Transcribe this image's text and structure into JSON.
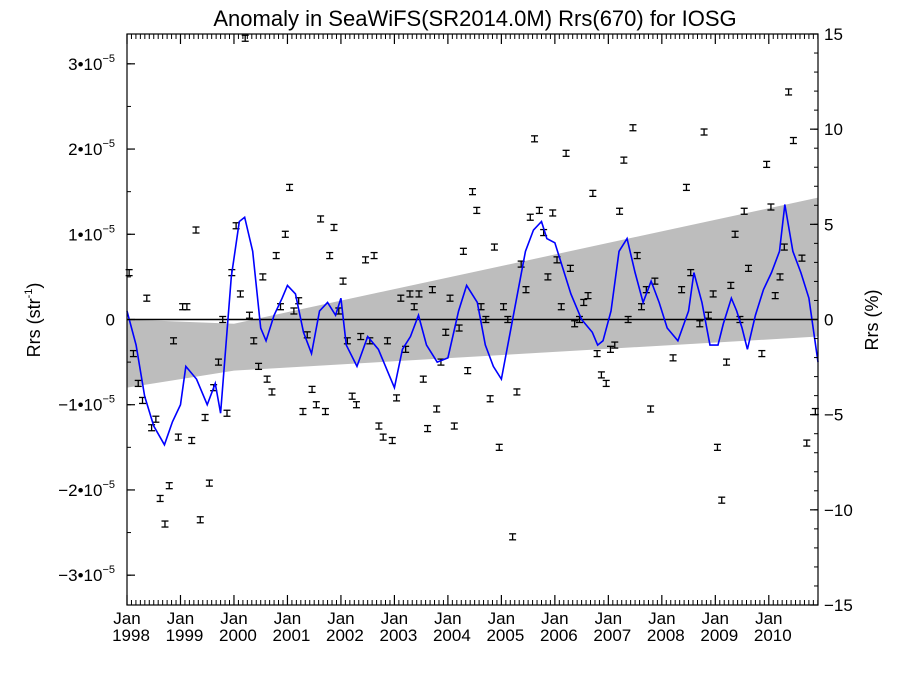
{
  "chart_data": {
    "type": "scatter",
    "title": "Anomaly in SeaWiFS(SR2014.0M) Rrs(670) for IOSG",
    "ylabel_left": "Rrs (str",
    "ylabel_left_sup": "-1",
    "ylabel_left_close": ")",
    "ylabel_right": "Rrs (%)",
    "y_left": {
      "lim": [
        -3.35e-05,
        3.35e-05
      ],
      "ticks": [
        {
          "value": 3e-05,
          "label": "3•10",
          "exp": "−5"
        },
        {
          "value": 2e-05,
          "label": "2•10",
          "exp": "−5"
        },
        {
          "value": 1e-05,
          "label": "1•10",
          "exp": "−5"
        },
        {
          "value": 0,
          "label": "0",
          "exp": ""
        },
        {
          "value": -1e-05,
          "label": "−1•10",
          "exp": "−5"
        },
        {
          "value": -2e-05,
          "label": "−2•10",
          "exp": "−5"
        },
        {
          "value": -3e-05,
          "label": "−3•10",
          "exp": "−5"
        }
      ]
    },
    "y_right": {
      "lim": [
        -15,
        15
      ],
      "ticks": [
        {
          "value": 15,
          "label": "15"
        },
        {
          "value": 10,
          "label": "10"
        },
        {
          "value": 5,
          "label": "5"
        },
        {
          "value": 0,
          "label": "0"
        },
        {
          "value": -5,
          "label": "−5"
        },
        {
          "value": -10,
          "label": "−10"
        },
        {
          "value": -15,
          "label": "−15"
        }
      ]
    },
    "x": {
      "lim": [
        1998.0,
        2010.92
      ],
      "ticks": [
        {
          "value": 1998,
          "month": "Jan",
          "year": "1998"
        },
        {
          "value": 1999,
          "month": "Jan",
          "year": "1999"
        },
        {
          "value": 2000,
          "month": "Jan",
          "year": "2000"
        },
        {
          "value": 2001,
          "month": "Jan",
          "year": "2001"
        },
        {
          "value": 2002,
          "month": "Jan",
          "year": "2002"
        },
        {
          "value": 2003,
          "month": "Jan",
          "year": "2003"
        },
        {
          "value": 2004,
          "month": "Jan",
          "year": "2004"
        },
        {
          "value": 2005,
          "month": "Jan",
          "year": "2005"
        },
        {
          "value": 2006,
          "month": "Jan",
          "year": "2006"
        },
        {
          "value": 2007,
          "month": "Jan",
          "year": "2007"
        },
        {
          "value": 2008,
          "month": "Jan",
          "year": "2008"
        },
        {
          "value": 2009,
          "month": "Jan",
          "year": "2009"
        },
        {
          "value": 2010,
          "month": "Jan",
          "year": "2010"
        }
      ]
    },
    "confidence_band": {
      "upper": [
        [
          1998.0,
          0.0
        ],
        [
          2000.0,
          -5e-07
        ],
        [
          2010.92,
          1.43e-05
        ]
      ],
      "lower": [
        [
          1998.0,
          -8e-06
        ],
        [
          2000.0,
          -6e-06
        ],
        [
          2010.92,
          -2e-06
        ]
      ]
    },
    "smoothed_line": [
      [
        1998.0,
        1e-06
      ],
      [
        1998.17,
        -3e-06
      ],
      [
        1998.33,
        -9e-06
      ],
      [
        1998.5,
        -1.25e-05
      ],
      [
        1998.7,
        -1.47e-05
      ],
      [
        1998.85,
        -1.2e-05
      ],
      [
        1999.0,
        -1e-05
      ],
      [
        1999.1,
        -5.5e-06
      ],
      [
        1999.3,
        -7e-06
      ],
      [
        1999.5,
        -1e-05
      ],
      [
        1999.65,
        -7.5e-06
      ],
      [
        1999.75,
        -1.1e-05
      ],
      [
        1999.85,
        -3e-06
      ],
      [
        1999.95,
        5e-06
      ],
      [
        2000.1,
        1.15e-05
      ],
      [
        2000.2,
        1.2e-05
      ],
      [
        2000.35,
        8e-06
      ],
      [
        2000.5,
        -1e-06
      ],
      [
        2000.6,
        -2.5e-06
      ],
      [
        2000.75,
        5e-07
      ],
      [
        2000.9,
        2.5e-06
      ],
      [
        2001.0,
        4e-06
      ],
      [
        2001.15,
        3e-06
      ],
      [
        2001.3,
        -1.5e-06
      ],
      [
        2001.45,
        -4e-06
      ],
      [
        2001.6,
        1e-06
      ],
      [
        2001.75,
        2e-06
      ],
      [
        2001.9,
        5e-07
      ],
      [
        2002.0,
        2.5e-06
      ],
      [
        2002.1,
        -3e-06
      ],
      [
        2002.3,
        -5.5e-06
      ],
      [
        2002.5,
        -2e-06
      ],
      [
        2002.7,
        -3.5e-06
      ],
      [
        2002.9,
        -6.5e-06
      ],
      [
        2003.0,
        -8e-06
      ],
      [
        2003.15,
        -3.5e-06
      ],
      [
        2003.3,
        -2e-06
      ],
      [
        2003.45,
        5e-07
      ],
      [
        2003.6,
        -3e-06
      ],
      [
        2003.8,
        -5e-06
      ],
      [
        2004.0,
        -4.5e-06
      ],
      [
        2004.2,
        1e-06
      ],
      [
        2004.35,
        4e-06
      ],
      [
        2004.55,
        2e-06
      ],
      [
        2004.7,
        -3e-06
      ],
      [
        2004.85,
        -5.5e-06
      ],
      [
        2005.0,
        -7e-06
      ],
      [
        2005.15,
        -2e-06
      ],
      [
        2005.3,
        3e-06
      ],
      [
        2005.45,
        8e-06
      ],
      [
        2005.6,
        1.05e-05
      ],
      [
        2005.75,
        1.15e-05
      ],
      [
        2005.85,
        9.5e-06
      ],
      [
        2006.0,
        9e-06
      ],
      [
        2006.15,
        6e-06
      ],
      [
        2006.3,
        3e-06
      ],
      [
        2006.5,
        0.0
      ],
      [
        2006.7,
        -1.5e-06
      ],
      [
        2006.8,
        -3e-06
      ],
      [
        2006.9,
        -2.5e-06
      ],
      [
        2007.05,
        1e-06
      ],
      [
        2007.2,
        8e-06
      ],
      [
        2007.35,
        9.5e-06
      ],
      [
        2007.5,
        5.5e-06
      ],
      [
        2007.65,
        2e-06
      ],
      [
        2007.8,
        4.5e-06
      ],
      [
        2007.95,
        2e-06
      ],
      [
        2008.1,
        -1e-06
      ],
      [
        2008.3,
        -2.5e-06
      ],
      [
        2008.5,
        1e-06
      ],
      [
        2008.6,
        5.5e-06
      ],
      [
        2008.75,
        2e-06
      ],
      [
        2008.9,
        -3e-06
      ],
      [
        2009.05,
        -3e-06
      ],
      [
        2009.15,
        -5e-07
      ],
      [
        2009.3,
        2.5e-06
      ],
      [
        2009.4,
        1e-06
      ],
      [
        2009.5,
        -1e-06
      ],
      [
        2009.6,
        -3.5e-06
      ],
      [
        2009.75,
        5e-07
      ],
      [
        2009.9,
        3.5e-06
      ],
      [
        2010.05,
        5.5e-06
      ],
      [
        2010.2,
        8e-06
      ],
      [
        2010.3,
        1.35e-05
      ],
      [
        2010.45,
        8e-06
      ],
      [
        2010.6,
        5.5e-06
      ],
      [
        2010.75,
        2.5e-06
      ],
      [
        2010.92,
        -5e-06
      ]
    ],
    "points": [
      [
        1998.04,
        5.5e-06
      ],
      [
        1998.12,
        -4e-06
      ],
      [
        1998.21,
        -7.5e-06
      ],
      [
        1998.29,
        -9.5e-06
      ],
      [
        1998.37,
        2.5e-06
      ],
      [
        1998.46,
        -1.27e-05
      ],
      [
        1998.54,
        -1.17e-05
      ],
      [
        1998.62,
        -2.1e-05
      ],
      [
        1998.71,
        -2.4e-05
      ],
      [
        1998.79,
        -1.95e-05
      ],
      [
        1998.87,
        -2.5e-06
      ],
      [
        1998.96,
        -1.38e-05
      ],
      [
        1999.04,
        1.5e-06
      ],
      [
        1999.12,
        1.5e-06
      ],
      [
        1999.21,
        -1.42e-05
      ],
      [
        1999.29,
        1.05e-05
      ],
      [
        1999.37,
        -2.35e-05
      ],
      [
        1999.46,
        -1.15e-05
      ],
      [
        1999.54,
        -1.92e-05
      ],
      [
        1999.62,
        -8e-06
      ],
      [
        1999.71,
        -5e-06
      ],
      [
        1999.79,
        0.0
      ],
      [
        1999.87,
        -1.1e-05
      ],
      [
        1999.96,
        5.5e-06
      ],
      [
        2000.04,
        1.1e-05
      ],
      [
        2000.12,
        3e-06
      ],
      [
        2000.21,
        3.3e-05
      ],
      [
        2000.29,
        5e-07
      ],
      [
        2000.37,
        -2.5e-06
      ],
      [
        2000.46,
        -5.5e-06
      ],
      [
        2000.54,
        5e-06
      ],
      [
        2000.62,
        -7e-06
      ],
      [
        2000.71,
        -8.5e-06
      ],
      [
        2000.79,
        7.5e-06
      ],
      [
        2000.87,
        1.5e-06
      ],
      [
        2000.96,
        1e-05
      ],
      [
        2001.04,
        1.55e-05
      ],
      [
        2001.12,
        1e-06
      ],
      [
        2001.21,
        2.2e-06
      ],
      [
        2001.29,
        -1.08e-05
      ],
      [
        2001.37,
        -1.8e-06
      ],
      [
        2001.46,
        -8.2e-06
      ],
      [
        2001.54,
        -1e-05
      ],
      [
        2001.62,
        1.18e-05
      ],
      [
        2001.71,
        -1.08e-05
      ],
      [
        2001.79,
        7.5e-06
      ],
      [
        2001.87,
        1.08e-05
      ],
      [
        2001.96,
        1e-06
      ],
      [
        2002.04,
        4.5e-06
      ],
      [
        2002.12,
        -2.5e-06
      ],
      [
        2002.21,
        -9e-06
      ],
      [
        2002.29,
        -1e-05
      ],
      [
        2002.37,
        -2e-06
      ],
      [
        2002.46,
        7e-06
      ],
      [
        2002.54,
        -2.5e-06
      ],
      [
        2002.62,
        7.5e-06
      ],
      [
        2002.71,
        -1.25e-05
      ],
      [
        2002.79,
        -1.38e-05
      ],
      [
        2002.87,
        -2.5e-06
      ],
      [
        2002.96,
        -1.42e-05
      ],
      [
        2003.04,
        -9.2e-06
      ],
      [
        2003.12,
        2.5e-06
      ],
      [
        2003.21,
        -3.5e-06
      ],
      [
        2003.29,
        3e-06
      ],
      [
        2003.37,
        1.5e-06
      ],
      [
        2003.46,
        3e-06
      ],
      [
        2003.54,
        -7e-06
      ],
      [
        2003.62,
        -1.28e-05
      ],
      [
        2003.71,
        3.5e-06
      ],
      [
        2003.79,
        -1.05e-05
      ],
      [
        2003.87,
        -5e-06
      ],
      [
        2003.96,
        -1.5e-06
      ],
      [
        2004.04,
        2.5e-06
      ],
      [
        2004.12,
        -1.25e-05
      ],
      [
        2004.21,
        -1e-06
      ],
      [
        2004.29,
        8e-06
      ],
      [
        2004.37,
        -6e-06
      ],
      [
        2004.46,
        1.5e-05
      ],
      [
        2004.54,
        1.28e-05
      ],
      [
        2004.62,
        1.5e-06
      ],
      [
        2004.71,
        0.0
      ],
      [
        2004.79,
        -9.3e-06
      ],
      [
        2004.87,
        8.5e-06
      ],
      [
        2004.96,
        -1.5e-05
      ],
      [
        2005.04,
        1.5e-06
      ],
      [
        2005.12,
        0.0
      ],
      [
        2005.21,
        -2.55e-05
      ],
      [
        2005.29,
        -8.5e-06
      ],
      [
        2005.37,
        6.5e-06
      ],
      [
        2005.46,
        3.5e-06
      ],
      [
        2005.54,
        1.2e-05
      ],
      [
        2005.62,
        2.12e-05
      ],
      [
        2005.71,
        1.28e-05
      ],
      [
        2005.79,
        1.02e-05
      ],
      [
        2005.87,
        5e-06
      ],
      [
        2005.96,
        1.25e-05
      ],
      [
        2006.04,
        7e-06
      ],
      [
        2006.12,
        1.5e-06
      ],
      [
        2006.21,
        1.95e-05
      ],
      [
        2006.29,
        6e-06
      ],
      [
        2006.37,
        -5e-07
      ],
      [
        2006.46,
        0.0
      ],
      [
        2006.54,
        2e-06
      ],
      [
        2006.62,
        2.8e-06
      ],
      [
        2006.71,
        1.48e-05
      ],
      [
        2006.79,
        -4e-06
      ],
      [
        2006.87,
        -6.5e-06
      ],
      [
        2006.96,
        -7.5e-06
      ],
      [
        2007.04,
        -3.5e-06
      ],
      [
        2007.12,
        -3e-06
      ],
      [
        2007.21,
        1.27e-05
      ],
      [
        2007.29,
        1.87e-05
      ],
      [
        2007.37,
        0.0
      ],
      [
        2007.46,
        2.25e-05
      ],
      [
        2007.54,
        7.5e-06
      ],
      [
        2007.62,
        1.5e-06
      ],
      [
        2007.71,
        3.5e-06
      ],
      [
        2007.79,
        -1.05e-05
      ],
      [
        2007.87,
        4.5e-06
      ],
      [
        2008.21,
        -4.5e-06
      ],
      [
        2008.37,
        3.5e-06
      ],
      [
        2008.46,
        1.55e-05
      ],
      [
        2008.54,
        5.5e-06
      ],
      [
        2008.71,
        -5e-07
      ],
      [
        2008.79,
        2.2e-05
      ],
      [
        2008.87,
        5e-07
      ],
      [
        2008.96,
        3e-06
      ],
      [
        2009.04,
        -1.5e-05
      ],
      [
        2009.12,
        -2.12e-05
      ],
      [
        2009.21,
        -5e-06
      ],
      [
        2009.29,
        4e-06
      ],
      [
        2009.37,
        1e-05
      ],
      [
        2009.46,
        0.0
      ],
      [
        2009.54,
        1.27e-05
      ],
      [
        2009.62,
        6e-06
      ],
      [
        2009.87,
        -4e-06
      ],
      [
        2009.96,
        1.82e-05
      ],
      [
        2010.04,
        1.32e-05
      ],
      [
        2010.12,
        2.8e-06
      ],
      [
        2010.21,
        5e-06
      ],
      [
        2010.29,
        8.5e-06
      ],
      [
        2010.37,
        2.67e-05
      ],
      [
        2010.46,
        2.1e-05
      ],
      [
        2010.62,
        7.2e-06
      ],
      [
        2010.71,
        -1.45e-05
      ],
      [
        2010.87,
        -1.08e-05
      ]
    ],
    "colors": {
      "band": "#bdbdbd",
      "line": "#0000ff",
      "points": "#000000",
      "zero_line": "#000000"
    },
    "grid": false
  }
}
